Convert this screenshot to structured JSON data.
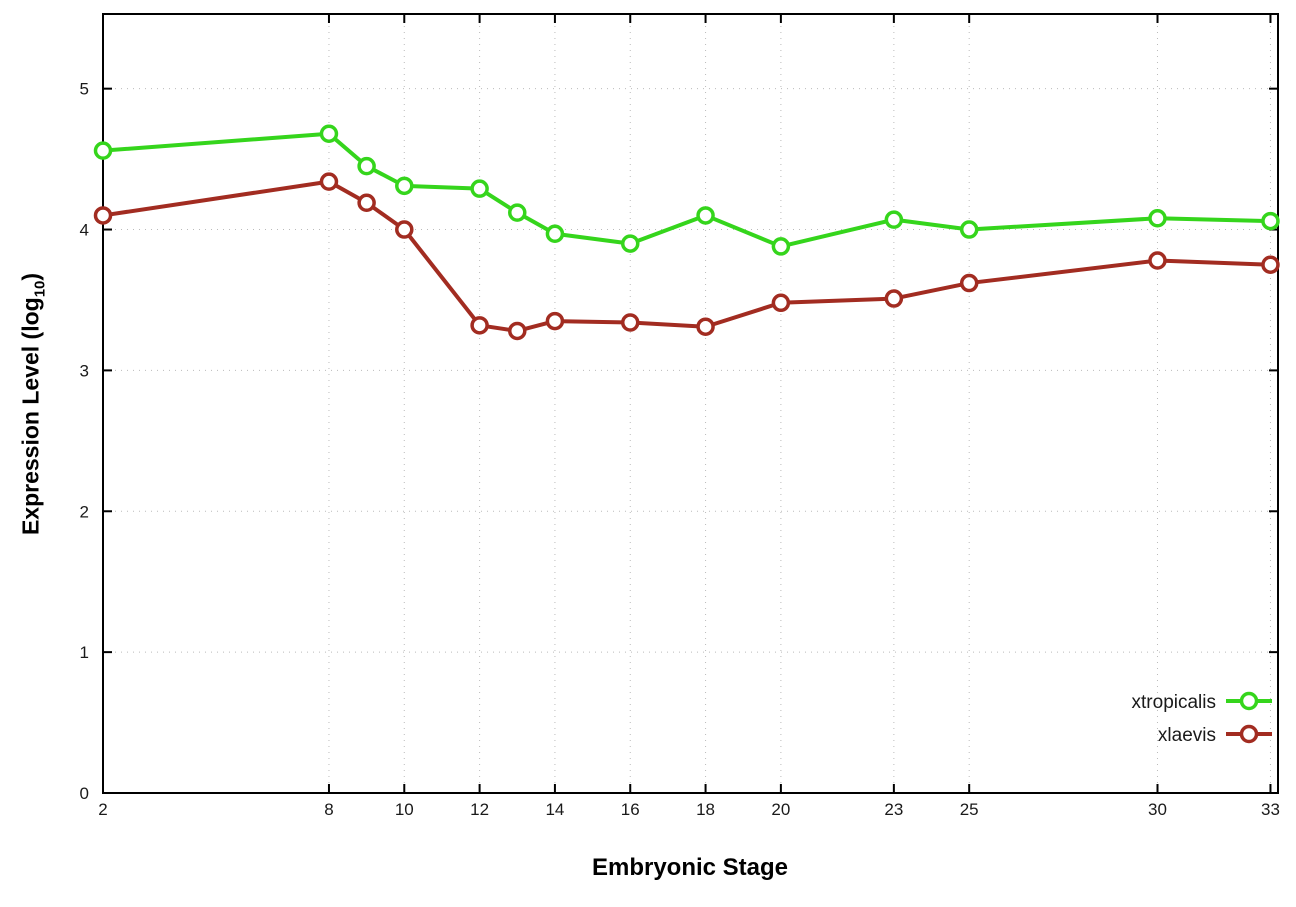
{
  "chart": {
    "xlabel": "Embryonic Stage",
    "ylabel_prefix": "Expression Level (log",
    "ylabel_sub": "10",
    "ylabel_suffix": ")"
  },
  "chart_data": {
    "type": "line",
    "title": "",
    "xlabel": "Embryonic Stage",
    "ylabel": "Expression Level (log10)",
    "x": [
      2,
      8,
      9,
      10,
      12,
      13,
      14,
      16,
      18,
      20,
      23,
      25,
      30,
      33
    ],
    "x_ticks": [
      2,
      8,
      10,
      12,
      14,
      16,
      18,
      20,
      23,
      25,
      30,
      33
    ],
    "y_ticks": [
      0,
      1,
      2,
      3,
      4,
      5
    ],
    "xlim": [
      2,
      33.2
    ],
    "ylim": [
      0,
      5.53
    ],
    "grid": true,
    "legend_position": "bottom-right",
    "series": [
      {
        "name": "xtropicalis",
        "color": "#35d51c",
        "values": [
          4.56,
          4.68,
          4.45,
          4.31,
          4.29,
          4.12,
          3.97,
          3.9,
          4.1,
          3.88,
          4.07,
          4.0,
          4.08,
          4.06
        ]
      },
      {
        "name": "xlaevis",
        "color": "#a22c21",
        "values": [
          4.1,
          4.34,
          4.19,
          4.0,
          3.32,
          3.28,
          3.35,
          3.34,
          3.31,
          3.48,
          3.51,
          3.62,
          3.78,
          3.75
        ]
      }
    ]
  }
}
